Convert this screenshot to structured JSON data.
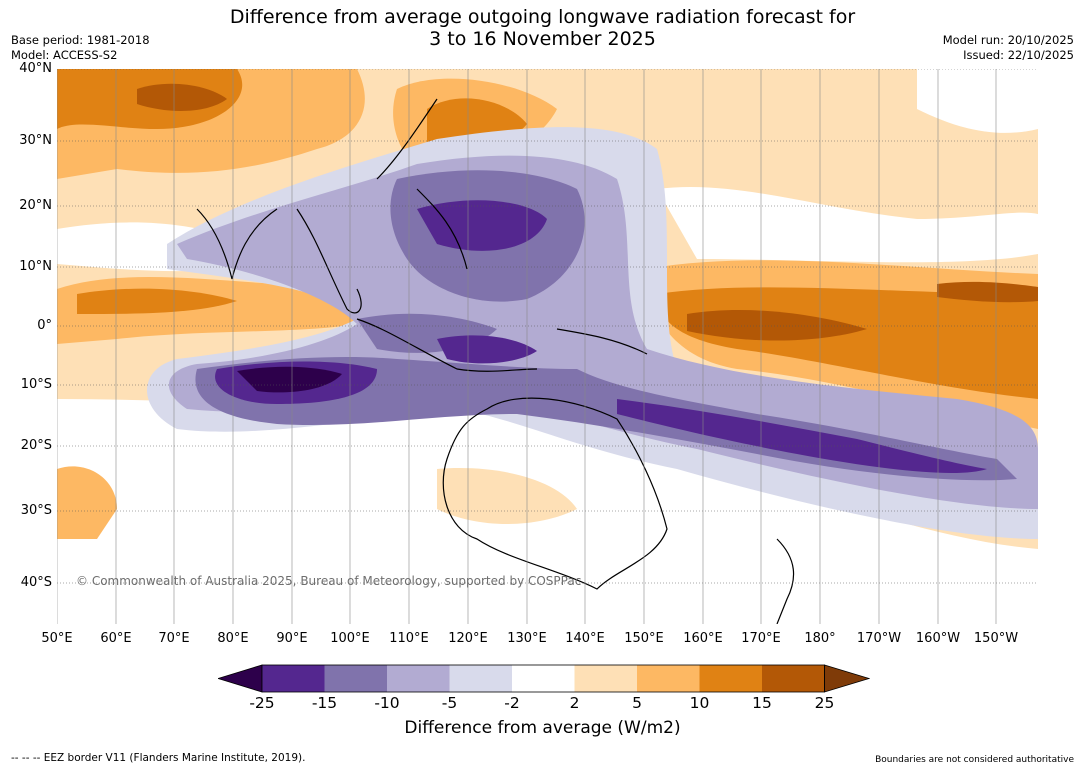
{
  "header": {
    "title_line1": "Difference from average outgoing longwave radiation forecast for",
    "title_line2": "3 to 16 November 2025",
    "base_period": "Base period: 1981-2018",
    "model": "Model: ACCESS-S2",
    "model_run": "Model run: 20/10/2025",
    "issued": "Issued: 22/10/2025"
  },
  "map": {
    "lat_labels": [
      "40°N",
      "30°N",
      "20°N",
      "10°N",
      "0°",
      "10°S",
      "20°S",
      "30°S",
      "40°S"
    ],
    "lon_labels": [
      "50°E",
      "60°E",
      "70°E",
      "80°E",
      "90°E",
      "100°E",
      "110°E",
      "120°E",
      "130°E",
      "140°E",
      "150°E",
      "160°E",
      "170°E",
      "180°",
      "170°W",
      "160°W",
      "150°W"
    ],
    "copyright": "© Commonwealth of Australia 2025, Bureau of Meteorology, supported by COSPPac"
  },
  "colorbar": {
    "ticks": [
      "-25",
      "-15",
      "-10",
      "-5",
      "-2",
      "2",
      "5",
      "10",
      "15",
      "25"
    ],
    "colors": [
      "#54278f",
      "#8073ac",
      "#b2abd2",
      "#d8daeb",
      "#ffffff",
      "#fee0b6",
      "#fdb863",
      "#e08214",
      "#b35806"
    ],
    "under_color": "#2d004b",
    "over_color": "#7f3b08",
    "label": "Difference from average (W/m2)"
  },
  "footer": {
    "eez_note": "--  --  -- EEZ border V11 (Flanders Marine Institute, 2019).",
    "disclaimer": "Boundaries are not considered authoritative"
  }
}
